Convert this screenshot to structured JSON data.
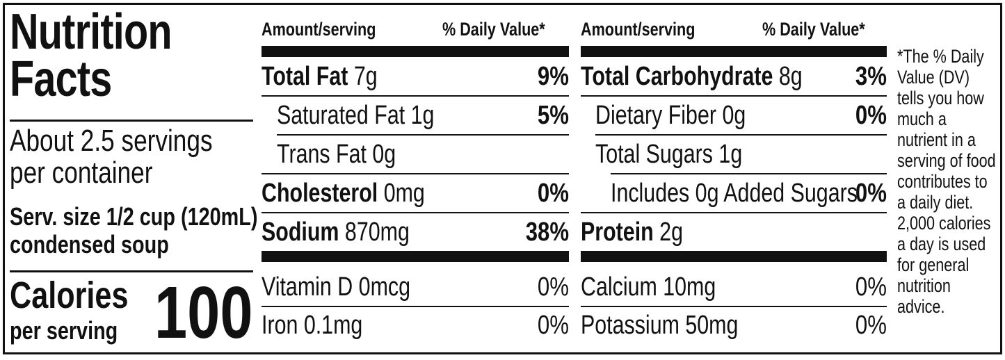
{
  "panel": {
    "title_line1": "Nutrition",
    "title_line2": "Facts",
    "servings_line1": "About 2.5 servings",
    "servings_line2": "per container",
    "serv_size_line1": "Serv. size 1/2 cup (120mL)",
    "serv_size_line2": "condensed soup",
    "calories_label": "Calories",
    "calories_sub": "per serving",
    "calories_value": "100"
  },
  "headers": {
    "amount": "Amount/serving",
    "dv": "% Daily Value*"
  },
  "left_rows": [
    {
      "name_bold": "Total Fat",
      "amount": "7g",
      "dv": "9%"
    },
    {
      "name": "Saturated Fat 1g",
      "dv": "5%"
    },
    {
      "name": "Trans Fat 0g",
      "dv": ""
    },
    {
      "name_bold": "Cholesterol",
      "amount": "0mg",
      "dv": "0%"
    },
    {
      "name_bold": "Sodium",
      "amount": "870mg",
      "dv": "38%"
    }
  ],
  "right_rows": [
    {
      "name_bold": "Total Carbohydrate",
      "amount": "8g",
      "dv": "3%"
    },
    {
      "name": "Dietary Fiber 0g",
      "dv": "0%"
    },
    {
      "name": "Total Sugars 1g",
      "dv": ""
    },
    {
      "name": "Includes 0g Added Sugars",
      "dv": "0%"
    },
    {
      "name_bold": "Protein",
      "amount": "2g",
      "dv": ""
    }
  ],
  "vitamins": [
    {
      "name": "Vitamin D 0mcg",
      "dv": "0%"
    },
    {
      "name": "Iron 0.1mg",
      "dv": "0%"
    },
    {
      "name": "Calcium 10mg",
      "dv": "0%"
    },
    {
      "name": "Potassium 50mg",
      "dv": "0%"
    }
  ],
  "footnote": [
    "*The % Daily",
    "Value (DV)",
    "tells you how",
    "much a",
    "nutrient in a",
    "serving of food",
    "contributes to",
    "a daily diet.",
    "2,000 calories",
    "a day is used",
    "for general",
    "nutrition",
    "advice."
  ]
}
